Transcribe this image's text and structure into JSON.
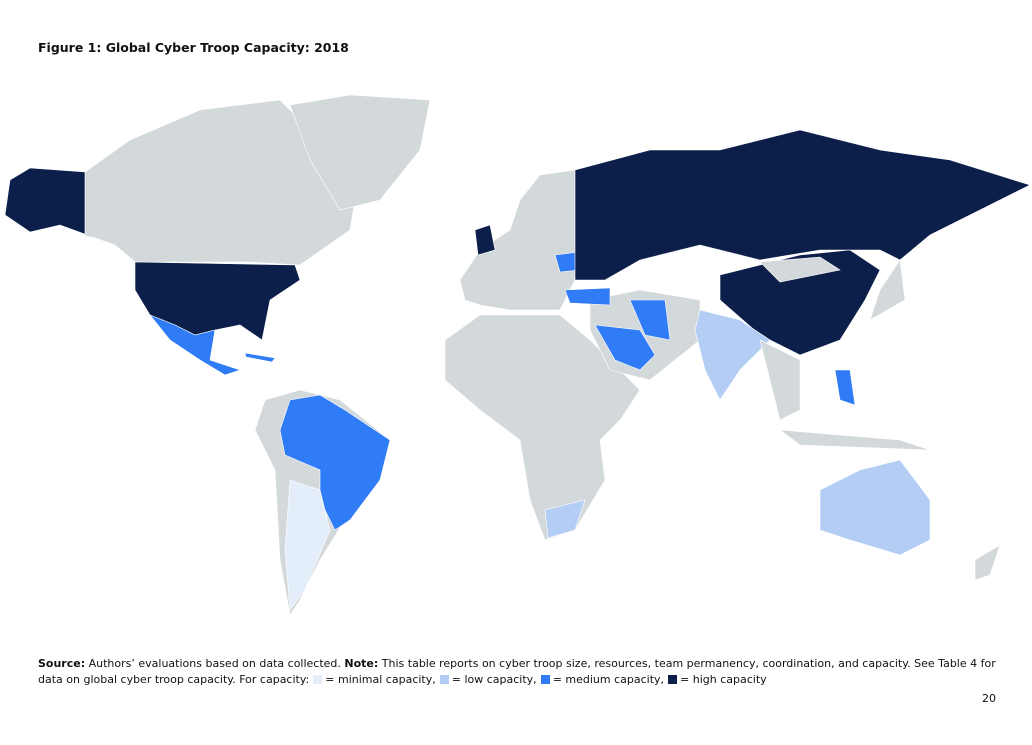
{
  "figure": {
    "title": "Figure 1: Global Cyber Troop Capacity: 2018"
  },
  "caption": {
    "source_label": "Source:",
    "source_text": "Authors’ evaluations based on data collected.",
    "note_label": "Note:",
    "note_text": "This table reports on cyber troop size, resources, team permanency, coordination, and capacity. See Table 4 for data on global cyber troop capacity. For capacity:"
  },
  "legend": [
    {
      "label": "= minimal capacity,"
    },
    {
      "label": "= low capacity,"
    },
    {
      "label": "= medium capacity,"
    },
    {
      "label": "= high capacity"
    }
  ],
  "page_number": "20"
}
